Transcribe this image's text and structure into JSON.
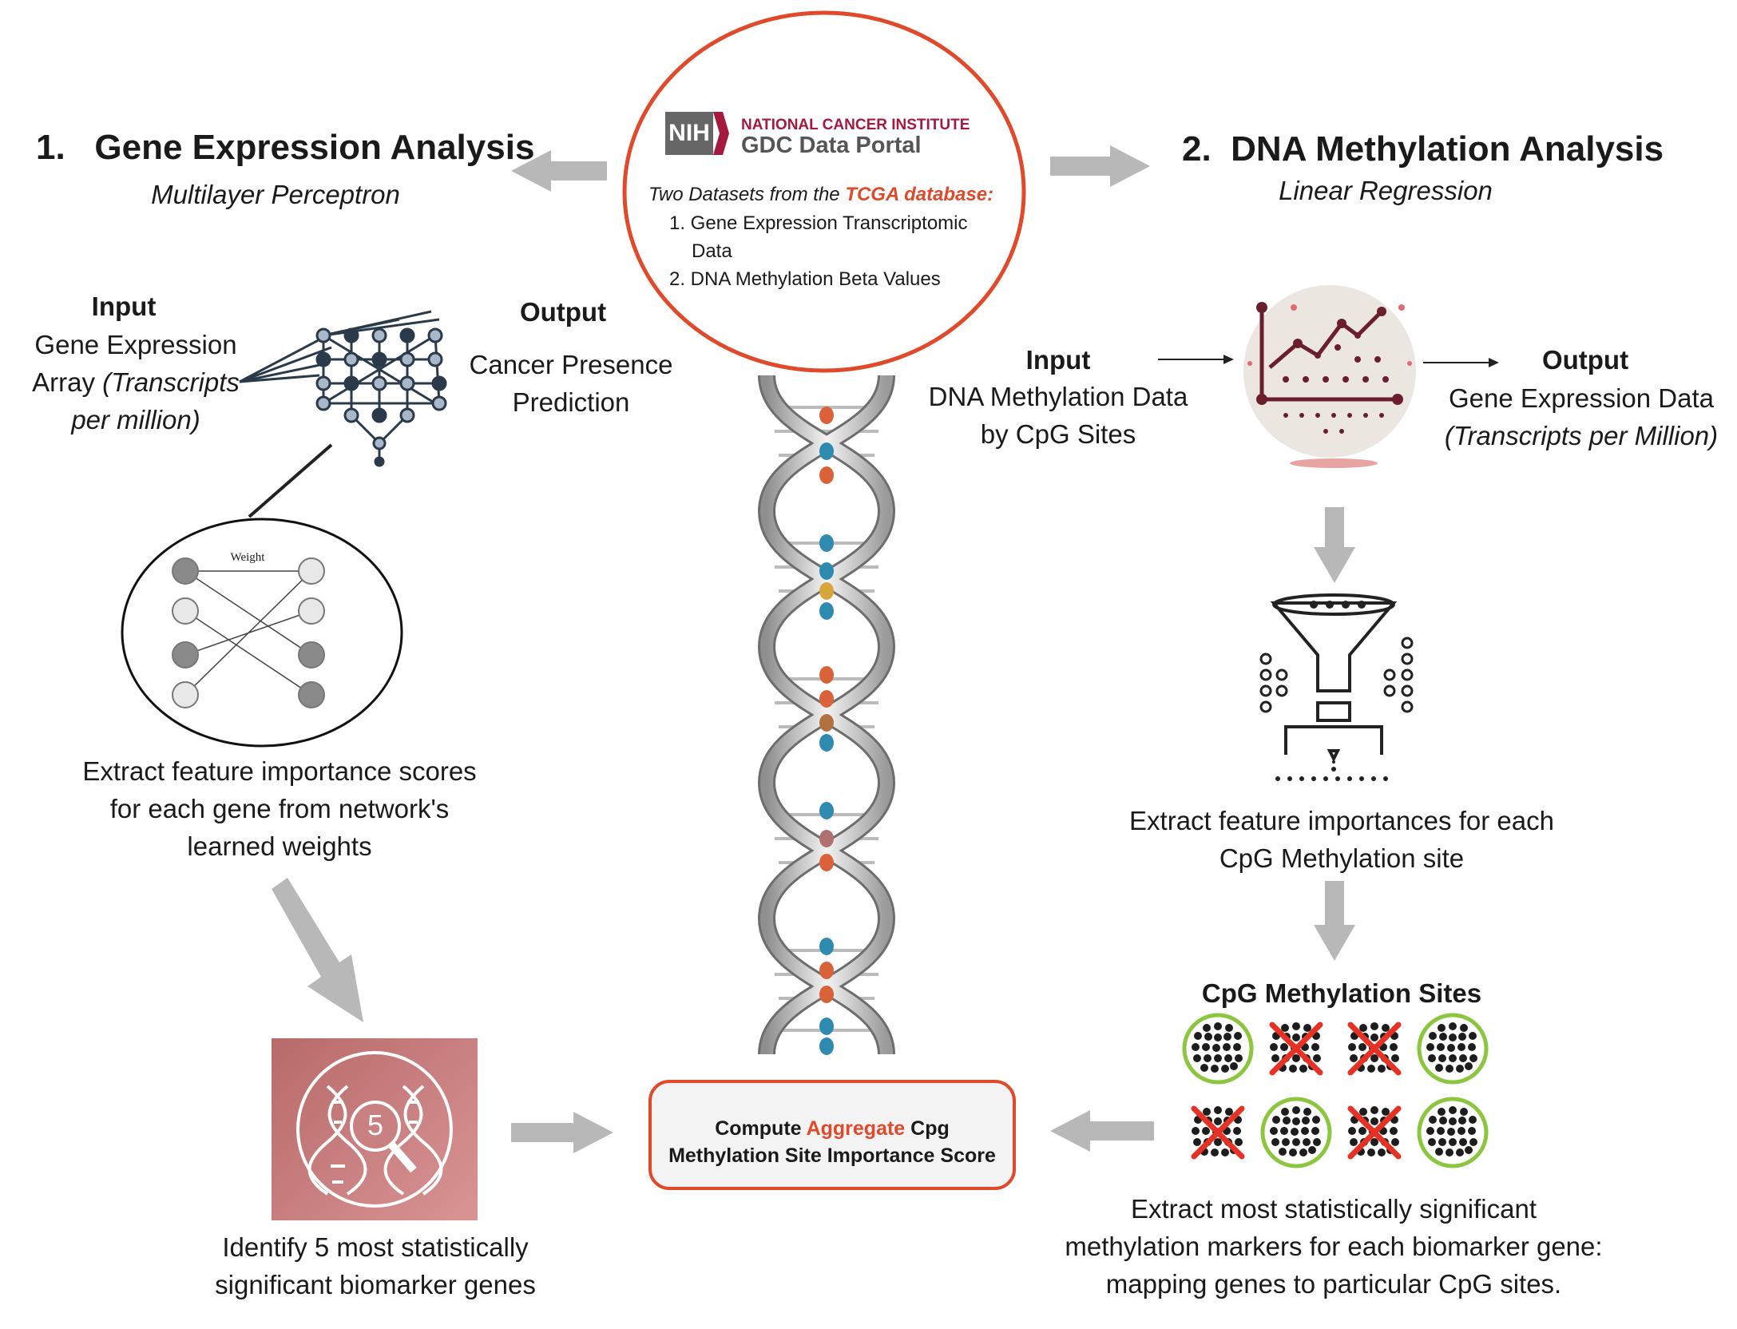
{
  "center": {
    "nih_badge": "NIH",
    "institute": "NATIONAL CANCER INSTITUTE",
    "portal": "GDC Data Portal",
    "datasets_prefix": "Two Datasets from the ",
    "datasets_highlight": "TCGA database:",
    "dataset_1": "1. Gene Expression Transcriptomic",
    "dataset_1b": "Data",
    "dataset_2": "2. DNA Methylation Beta Values"
  },
  "left": {
    "title": "1.   Gene Expression Analysis",
    "subtitle": "Multilayer Perceptron",
    "input_label": "Input",
    "input_line1": "Gene Expression",
    "input_line2a": "Array ",
    "input_line2b": "(Transcripts",
    "input_line3": "per million)",
    "output_label": "Output",
    "output_line1": "Cancer Presence",
    "output_line2": "Prediction",
    "weight_label": "Weight",
    "extract_line1": "Extract feature importance scores",
    "extract_line2": "for each gene from network's",
    "extract_line3": "learned weights",
    "badge_number": "5",
    "identify_line1": "Identify 5 most statistically",
    "identify_line2": "significant biomarker genes"
  },
  "right": {
    "title": "2.  DNA Methylation Analysis",
    "subtitle": "Linear Regression",
    "input_label": "Input",
    "input_line1": "DNA Methylation Data",
    "input_line2": "by CpG Sites",
    "output_label": "Output",
    "output_line1": "Gene Expression Data",
    "output_line2": "(Transcripts per Million)",
    "extract_line1": "Extract feature importances for each",
    "extract_line2": "CpG Methylation site",
    "cpg_title": "CpG Methylation Sites",
    "markers_line1": "Extract most statistically significant",
    "markers_line2": "methylation markers for each biomarker gene:",
    "markers_line3": "mapping genes to particular CpG sites."
  },
  "aggregate": {
    "prefix": "Compute ",
    "highlight": "Aggregate",
    "suffix": " Cpg",
    "line2": "Methylation Site Importance Score"
  },
  "cpg_sites": [
    {
      "selected": true
    },
    {
      "selected": false
    },
    {
      "selected": false
    },
    {
      "selected": true
    },
    {
      "selected": false
    },
    {
      "selected": true
    },
    {
      "selected": false
    },
    {
      "selected": true
    }
  ],
  "colors": {
    "accent_red": "#e0492a",
    "nih_crimson": "#a6193f",
    "arrow_gray": "#b8b8b8",
    "green_ring": "#8cc63f",
    "cross_red": "#e53225"
  }
}
